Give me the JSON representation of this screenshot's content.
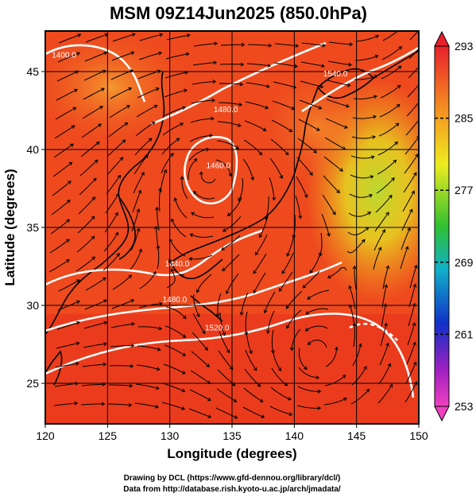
{
  "title": "MSM 09Z14Jun2025 (850.0hPa)",
  "xlabel": "Longitude (degrees)",
  "ylabel": "Latitude  (degrees)",
  "x_ticks": [
    "120",
    "125",
    "130",
    "135",
    "140",
    "145",
    "150"
  ],
  "y_ticks": [
    "25",
    "30",
    "35",
    "40",
    "45"
  ],
  "map": {
    "lon_range": [
      120,
      150
    ],
    "lat_range": [
      22.4,
      47.6
    ],
    "grid": true,
    "field": "temperature (K)",
    "overlay": [
      "geopotential height contours",
      "wind streamlines",
      "coastlines"
    ]
  },
  "colorbar": {
    "ticks": [
      "293",
      "285",
      "277",
      "269",
      "261",
      "253"
    ],
    "min": 253,
    "max": 293,
    "colors": {
      "top": "#e8202a",
      "orange": "#f5a020",
      "yellow": "#ecec20",
      "green": "#30c030",
      "cyan": "#10b0c8",
      "blue": "#1030c8",
      "purple": "#a020c0",
      "magenta": "#f040c0"
    }
  },
  "contour_labels": [
    {
      "text": "1400.0",
      "lon": 121.5,
      "lat": 45.9
    },
    {
      "text": "1480.0",
      "lon": 134.5,
      "lat": 42.4
    },
    {
      "text": "1460.0",
      "lon": 133.9,
      "lat": 38.8
    },
    {
      "text": "1540.0",
      "lon": 143.3,
      "lat": 44.7
    },
    {
      "text": "1440.0",
      "lon": 130.6,
      "lat": 32.5
    },
    {
      "text": "1480.0",
      "lon": 130.4,
      "lat": 30.2
    },
    {
      "text": "1520.0",
      "lon": 133.8,
      "lat": 28.4
    }
  ],
  "credits": {
    "line1": "Drawing by DCL (https://www.gfd-dennou.org/library/dcl/)",
    "line2": "Data from http://database.rish.kyoto-u.ac.jp/arch/jmadata/"
  }
}
